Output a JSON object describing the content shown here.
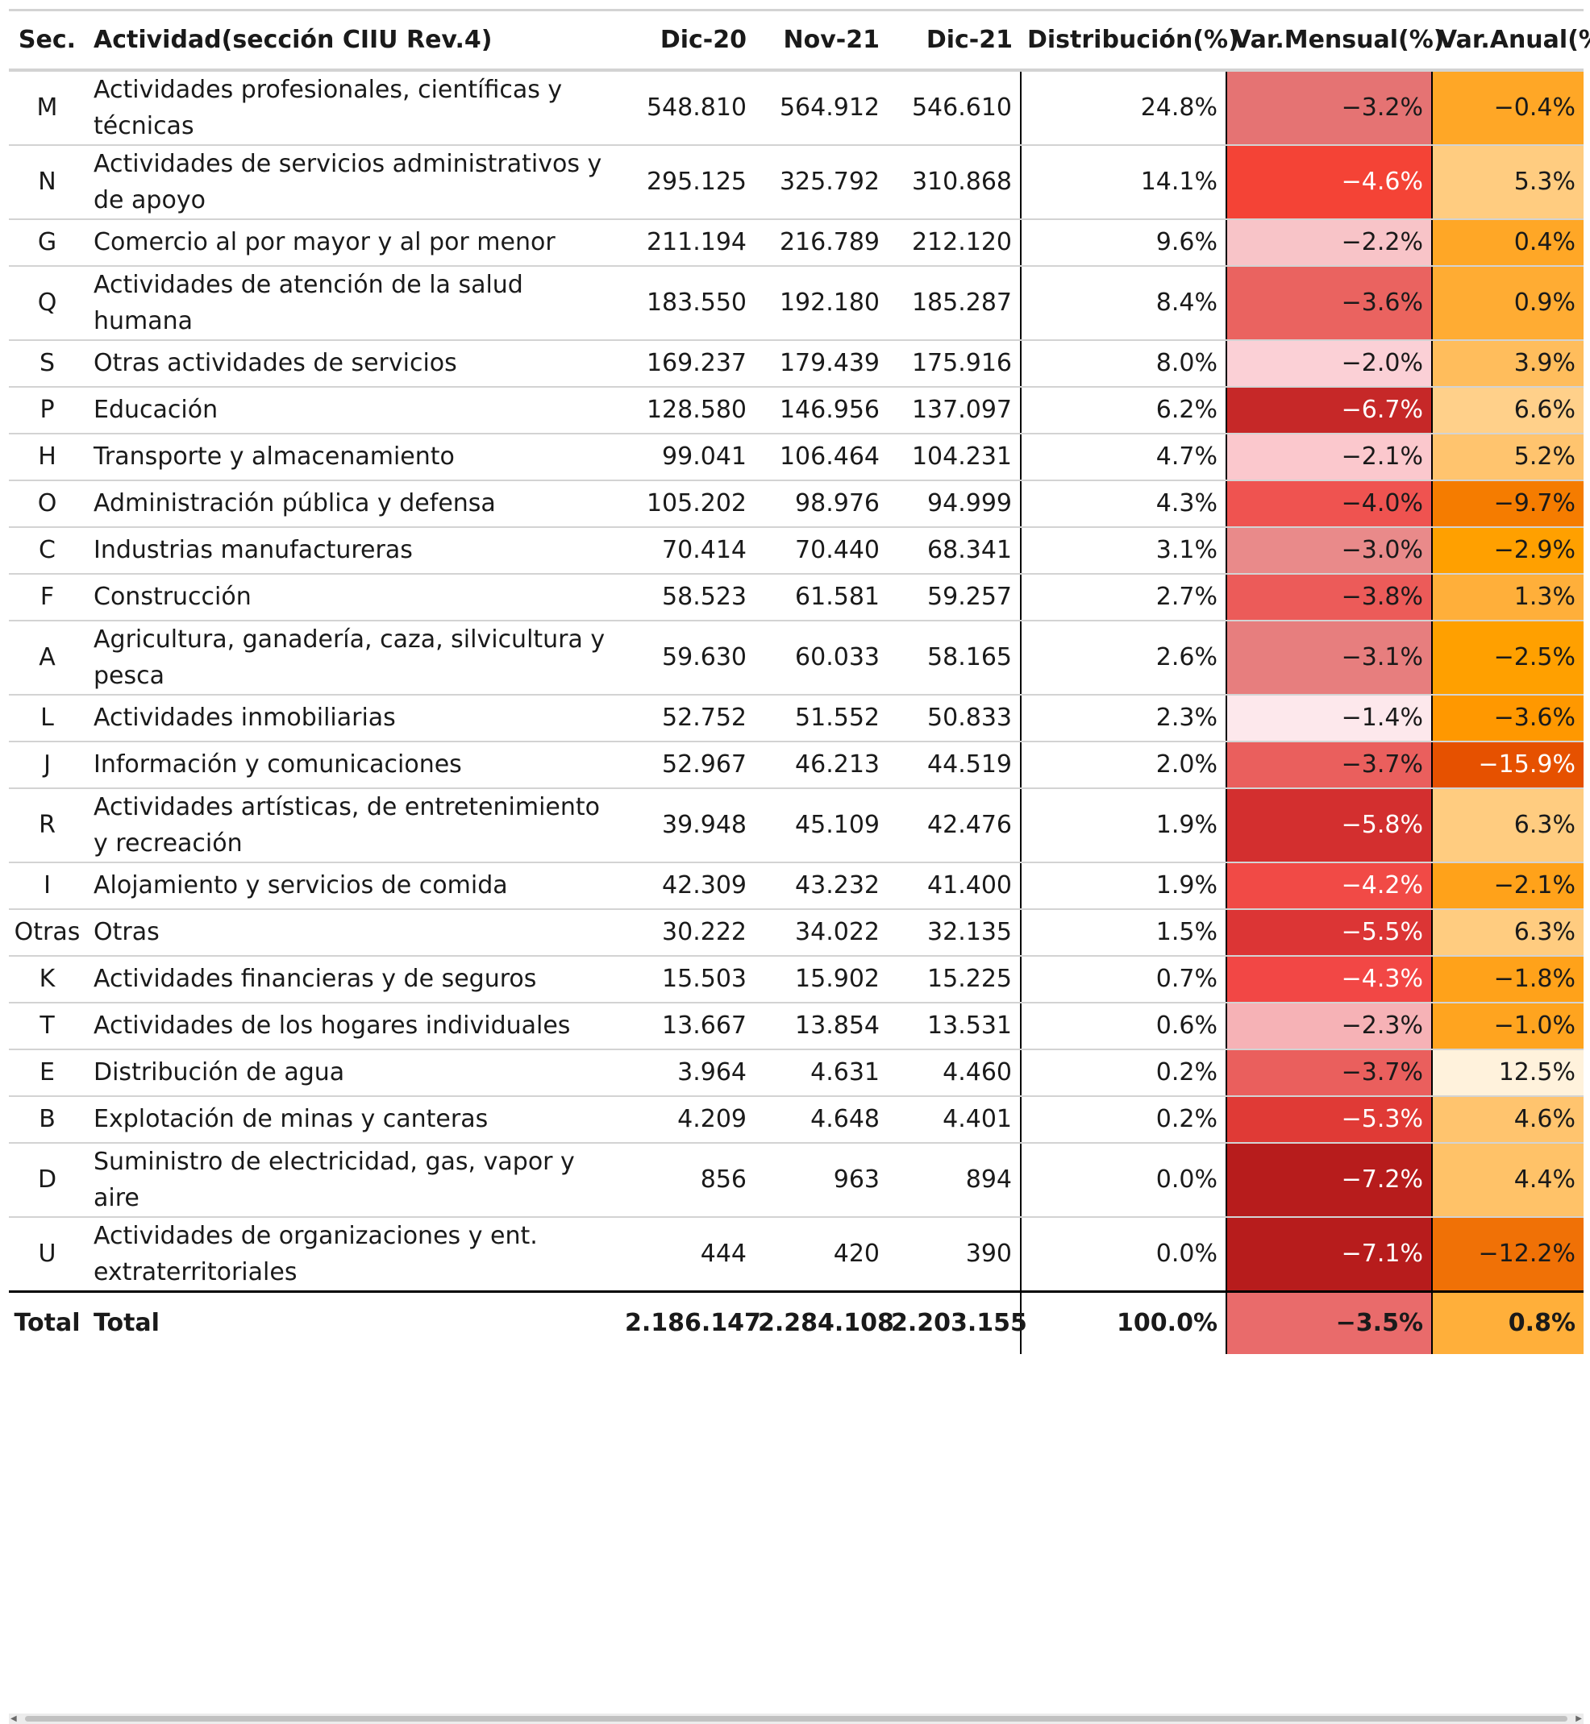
{
  "chart_data": {
    "type": "table",
    "columns": [
      "Sec.",
      "Actividad(sección CIIU Rev.4)",
      "Dic-20",
      "Nov-21",
      "Dic-21",
      "Distribución(%)",
      "Var.Mensual(%)",
      "Var.Anual(%)"
    ],
    "rows": [
      {
        "sec": "M",
        "actividad": "Actividades profesionales, científicas y técnicas",
        "dic20": "548.810",
        "nov21": "564.912",
        "dic21": "546.610",
        "dist": "24.8%",
        "mens": "−3.2%",
        "anual": "−0.4%",
        "mens_color": "#e57373",
        "anual_color": "#ffa726",
        "mens_text": "#1a1a1a",
        "anual_text": "#1a1a1a"
      },
      {
        "sec": "N",
        "actividad": "Actividades de servicios administrativos y de apoyo",
        "dic20": "295.125",
        "nov21": "325.792",
        "dic21": "310.868",
        "dist": "14.1%",
        "mens": "−4.6%",
        "anual": "5.3%",
        "mens_color": "#f44336",
        "anual_color": "#ffcc80",
        "mens_text": "#ffffff",
        "anual_text": "#1a1a1a"
      },
      {
        "sec": "G",
        "actividad": "Comercio al por mayor y al por menor",
        "dic20": "211.194",
        "nov21": "216.789",
        "dic21": "212.120",
        "dist": "9.6%",
        "mens": "−2.2%",
        "anual": "0.4%",
        "mens_color": "#f8c4c8",
        "anual_color": "#ffa726",
        "mens_text": "#1a1a1a",
        "anual_text": "#1a1a1a"
      },
      {
        "sec": "Q",
        "actividad": "Actividades de atención de la salud humana",
        "dic20": "183.550",
        "nov21": "192.180",
        "dic21": "185.287",
        "dist": "8.4%",
        "mens": "−3.6%",
        "anual": "0.9%",
        "mens_color": "#ea6360",
        "anual_color": "#ffac33",
        "mens_text": "#1a1a1a",
        "anual_text": "#1a1a1a"
      },
      {
        "sec": "S",
        "actividad": "Otras actividades de servicios",
        "dic20": "169.237",
        "nov21": "179.439",
        "dic21": "175.916",
        "dist": "8.0%",
        "mens": "−2.0%",
        "anual": "3.9%",
        "mens_color": "#fbd0d6",
        "anual_color": "#ffbd5c",
        "mens_text": "#1a1a1a",
        "anual_text": "#1a1a1a"
      },
      {
        "sec": "P",
        "actividad": "Educación",
        "dic20": "128.580",
        "nov21": "146.956",
        "dic21": "137.097",
        "dist": "6.2%",
        "mens": "−6.7%",
        "anual": "6.6%",
        "mens_color": "#c62828",
        "anual_color": "#ffd08a",
        "mens_text": "#ffffff",
        "anual_text": "#1a1a1a"
      },
      {
        "sec": "H",
        "actividad": "Transporte y almacenamiento",
        "dic20": "99.041",
        "nov21": "106.464",
        "dic21": "104.231",
        "dist": "4.7%",
        "mens": "−2.1%",
        "anual": "5.2%",
        "mens_color": "#fbc8cd",
        "anual_color": "#ffc46e",
        "mens_text": "#1a1a1a",
        "anual_text": "#1a1a1a"
      },
      {
        "sec": "O",
        "actividad": "Administración pública y defensa",
        "dic20": "105.202",
        "nov21": "98.976",
        "dic21": "94.999",
        "dist": "4.3%",
        "mens": "−4.0%",
        "anual": "−9.7%",
        "mens_color": "#ef5350",
        "anual_color": "#f57c00",
        "mens_text": "#1a1a1a",
        "anual_text": "#1a1a1a"
      },
      {
        "sec": "C",
        "actividad": "Industrias manufactureras",
        "dic20": "70.414",
        "nov21": "70.440",
        "dic21": "68.341",
        "dist": "3.1%",
        "mens": "−3.0%",
        "anual": "−2.9%",
        "mens_color": "#e98a8a",
        "anual_color": "#ffa000",
        "mens_text": "#1a1a1a",
        "anual_text": "#1a1a1a"
      },
      {
        "sec": "F",
        "actividad": "Construcción",
        "dic20": "58.523",
        "nov21": "61.581",
        "dic21": "59.257",
        "dist": "2.7%",
        "mens": "−3.8%",
        "anual": "1.3%",
        "mens_color": "#ec5b59",
        "anual_color": "#ffaf3a",
        "mens_text": "#1a1a1a",
        "anual_text": "#1a1a1a"
      },
      {
        "sec": "A",
        "actividad": "Agricultura, ganadería, caza, silvicultura y pesca",
        "dic20": "59.630",
        "nov21": "60.033",
        "dic21": "58.165",
        "dist": "2.6%",
        "mens": "−3.1%",
        "anual": "−2.5%",
        "mens_color": "#e77e7e",
        "anual_color": "#ffa000",
        "mens_text": "#1a1a1a",
        "anual_text": "#1a1a1a"
      },
      {
        "sec": "L",
        "actividad": "Actividades inmobiliarias",
        "dic20": "52.752",
        "nov21": "51.552",
        "dic21": "50.833",
        "dist": "2.3%",
        "mens": "−1.4%",
        "anual": "−3.6%",
        "mens_color": "#fde8ec",
        "anual_color": "#ff9800",
        "mens_text": "#1a1a1a",
        "anual_text": "#1a1a1a"
      },
      {
        "sec": "J",
        "actividad": "Información y comunicaciones",
        "dic20": "52.967",
        "nov21": "46.213",
        "dic21": "44.519",
        "dist": "2.0%",
        "mens": "−3.7%",
        "anual": "−15.9%",
        "mens_color": "#ea5f5d",
        "anual_color": "#e65100",
        "mens_text": "#1a1a1a",
        "anual_text": "#ffffff"
      },
      {
        "sec": "R",
        "actividad": "Actividades artísticas, de entretenimiento y recreación",
        "dic20": "39.948",
        "nov21": "45.109",
        "dic21": "42.476",
        "dist": "1.9%",
        "mens": "−5.8%",
        "anual": "6.3%",
        "mens_color": "#d32f2f",
        "anual_color": "#ffcc80",
        "mens_text": "#ffffff",
        "anual_text": "#1a1a1a"
      },
      {
        "sec": "I",
        "actividad": "Alojamiento y servicios de comida",
        "dic20": "42.309",
        "nov21": "43.232",
        "dic21": "41.400",
        "dist": "1.9%",
        "mens": "−4.2%",
        "anual": "−2.1%",
        "mens_color": "#f14a46",
        "anual_color": "#ffa21a",
        "mens_text": "#ffffff",
        "anual_text": "#1a1a1a"
      },
      {
        "sec": "Otras",
        "actividad": "Otras",
        "dic20": "30.222",
        "nov21": "34.022",
        "dic21": "32.135",
        "dist": "1.5%",
        "mens": "−5.5%",
        "anual": "6.3%",
        "mens_color": "#dc3535",
        "anual_color": "#ffcc80",
        "mens_text": "#ffffff",
        "anual_text": "#1a1a1a"
      },
      {
        "sec": "K",
        "actividad": "Actividades financieras y de seguros",
        "dic20": "15.503",
        "nov21": "15.902",
        "dic21": "15.225",
        "dist": "0.7%",
        "mens": "−4.3%",
        "anual": "−1.8%",
        "mens_color": "#f24745",
        "anual_color": "#ffa21a",
        "mens_text": "#ffffff",
        "anual_text": "#1a1a1a"
      },
      {
        "sec": "T",
        "actividad": "Actividades de los hogares individuales",
        "dic20": "13.667",
        "nov21": "13.854",
        "dic21": "13.531",
        "dist": "0.6%",
        "mens": "−2.3%",
        "anual": "−1.0%",
        "mens_color": "#f6b2b6",
        "anual_color": "#ffa41f",
        "mens_text": "#1a1a1a",
        "anual_text": "#1a1a1a"
      },
      {
        "sec": "E",
        "actividad": "Distribución de agua",
        "dic20": "3.964",
        "nov21": "4.631",
        "dic21": "4.460",
        "dist": "0.2%",
        "mens": "−3.7%",
        "anual": "12.5%",
        "mens_color": "#ea5f5d",
        "anual_color": "#fff2dc",
        "mens_text": "#1a1a1a",
        "anual_text": "#1a1a1a"
      },
      {
        "sec": "B",
        "actividad": "Explotación de minas y canteras",
        "dic20": "4.209",
        "nov21": "4.648",
        "dic21": "4.401",
        "dist": "0.2%",
        "mens": "−5.3%",
        "anual": "4.6%",
        "mens_color": "#e03a36",
        "anual_color": "#ffc46e",
        "mens_text": "#ffffff",
        "anual_text": "#1a1a1a"
      },
      {
        "sec": "D",
        "actividad": "Suministro de electricidad, gas, vapor y aire",
        "dic20": "856",
        "nov21": "963",
        "dic21": "894",
        "dist": "0.0%",
        "mens": "−7.2%",
        "anual": "4.4%",
        "mens_color": "#b71c1c",
        "anual_color": "#ffc268",
        "mens_text": "#ffffff",
        "anual_text": "#1a1a1a"
      },
      {
        "sec": "U",
        "actividad": "Actividades de organizaciones y ent. extraterritoriales",
        "dic20": "444",
        "nov21": "420",
        "dic21": "390",
        "dist": "0.0%",
        "mens": "−7.1%",
        "anual": "−12.2%",
        "mens_color": "#b71c1c",
        "anual_color": "#f07106",
        "mens_text": "#ffffff",
        "anual_text": "#1a1a1a"
      }
    ],
    "total": {
      "sec": "Total",
      "actividad": "Total",
      "dic20": "2.186.147",
      "nov21": "2.284.108",
      "dic21": "2.203.155",
      "dist": "100.0%",
      "mens": "−3.5%",
      "anual": "0.8%",
      "mens_color": "#e96b6b",
      "anual_color": "#ffaf3a",
      "mens_text": "#1a1a1a",
      "anual_text": "#1a1a1a"
    }
  }
}
